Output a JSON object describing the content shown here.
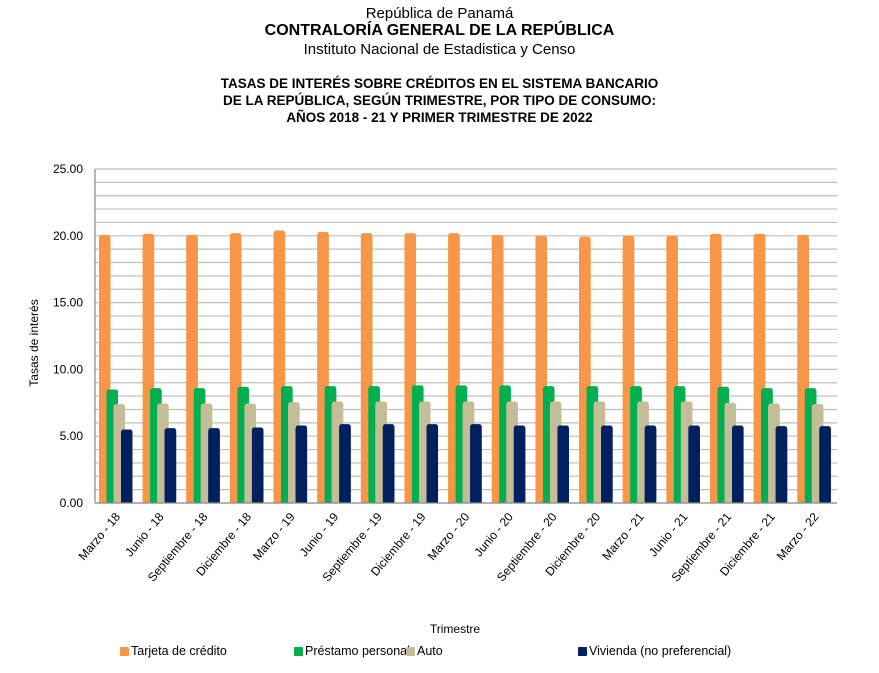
{
  "header": {
    "line1": "República de Panamá",
    "line2": "CONTRALORÍA GENERAL DE LA REPÚBLICA",
    "line3": "Instituto  Nacional de Estadistica y Censo"
  },
  "chart_data": {
    "type": "bar",
    "title": "TASAS  DE  INTERÉS  SOBRE  CRÉDITOS  EN  EL  SISTEMA  BANCARIO DE LA REPÚBLICA,  SEGÚN  TRIMESTRE,  POR  TIPO DE CONSUMO: AÑOS 2018 - 21 Y PRIMER TRIMESTRE DE 2022",
    "title_lines": [
      "TASAS  DE  INTERÉS  SOBRE  CRÉDITOS  EN  EL  SISTEMA  BANCARIO",
      "DE LA REPÚBLICA,  SEGÚN  TRIMESTRE,  POR  TIPO DE CONSUMO:",
      "AÑOS 2018 - 21 Y PRIMER TRIMESTRE DE 2022"
    ],
    "xlabel": "Trimestre",
    "ylabel": "Tasas de interés",
    "ylim": [
      0,
      25
    ],
    "yticks": [
      "0.00",
      "5.00",
      "10.00",
      "15.00",
      "20.00",
      "25.00"
    ],
    "ytick_values": [
      0,
      5,
      10,
      15,
      20,
      25
    ],
    "minor_grid_step": 1,
    "grid": true,
    "legend_position": "bottom",
    "categories": [
      "Marzo - 18",
      "Junio - 18",
      "Septiembre - 18",
      "Diciembre - 18",
      "Marzo - 19",
      "Junio - 19",
      "Septiembre - 19",
      "Diciembre - 19",
      "Marzo - 20",
      "Junio - 20",
      "Septiembre - 20",
      "Diciembre - 20",
      "Marzo - 21",
      "Junio - 21",
      "Septiembre - 21",
      "Diciembre - 21",
      "Marzo - 22"
    ],
    "series": [
      {
        "name": "Tarjeta de crédito",
        "color": "#F79646",
        "values": [
          20.07,
          20.14,
          20.07,
          20.2,
          20.4,
          20.28,
          20.2,
          20.2,
          20.2,
          20.06,
          20.0,
          19.93,
          20.0,
          20.0,
          20.14,
          20.14,
          20.07
        ]
      },
      {
        "name": "Préstamo personal",
        "color": "#00B050",
        "values": [
          8.5,
          8.6,
          8.6,
          8.7,
          8.75,
          8.75,
          8.75,
          8.8,
          8.8,
          8.8,
          8.75,
          8.75,
          8.75,
          8.75,
          8.7,
          8.6,
          8.6
        ]
      },
      {
        "name": "Auto",
        "color": "#C4BD97",
        "values": [
          7.4,
          7.45,
          7.45,
          7.45,
          7.55,
          7.6,
          7.6,
          7.6,
          7.6,
          7.6,
          7.6,
          7.6,
          7.6,
          7.6,
          7.5,
          7.45,
          7.4
        ]
      },
      {
        "name": "Vivienda  (no preferencial)",
        "color": "#002060",
        "values": [
          5.5,
          5.6,
          5.6,
          5.65,
          5.8,
          5.9,
          5.9,
          5.9,
          5.9,
          5.8,
          5.8,
          5.8,
          5.8,
          5.8,
          5.8,
          5.75,
          5.75
        ]
      }
    ]
  }
}
